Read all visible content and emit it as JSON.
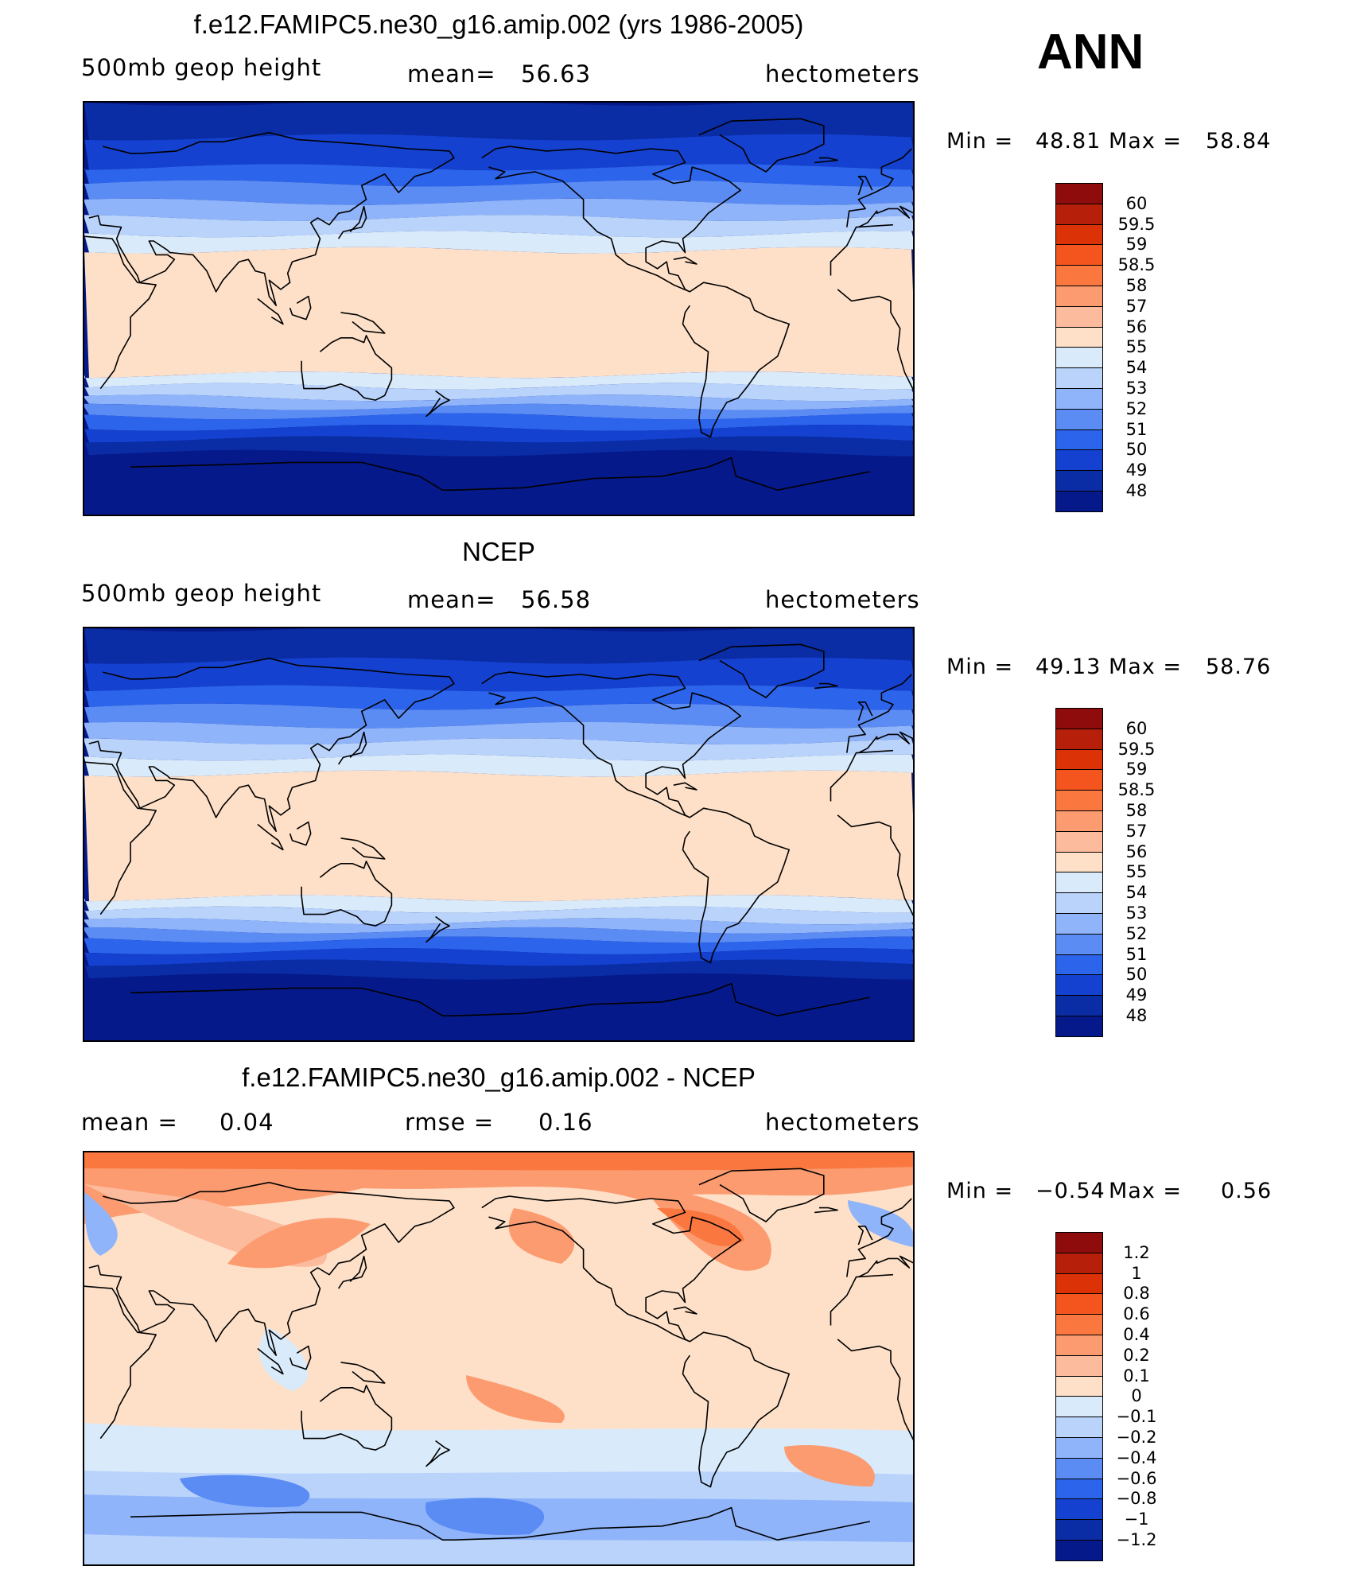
{
  "season": "ANN",
  "panels": [
    {
      "title": "f.e12.FAMIPC5.ne30_g16.amip.002 (yrs 1986-2005)",
      "left_label": "500mb  geop  height",
      "mid_prefix": "mean=",
      "mid_value": "56.63",
      "right_label": "hectometers",
      "min_label": "Min  =",
      "min_value": "48.81",
      "max_label": "Max  =",
      "max_value": "58.84",
      "colorbar": {
        "labels": [
          "60",
          "59.5",
          "59",
          "58.5",
          "58",
          "57",
          "56",
          "55",
          "54",
          "53",
          "52",
          "51",
          "50",
          "49",
          "48"
        ],
        "colors": [
          "#8e0c0c",
          "#b6200a",
          "#dc3208",
          "#f4541e",
          "#fa7840",
          "#fc9b70",
          "#fdbb9d",
          "#fee0c8",
          "#d9eafa",
          "#b9d3fb",
          "#8fb4fa",
          "#5b8cf4",
          "#2c64ec",
          "#1441cf",
          "#0a2ca4",
          "#06198a"
        ]
      },
      "field_bands": [
        {
          "lat": 90,
          "level": 1
        },
        {
          "lat": 75,
          "level": 2
        },
        {
          "lat": 62,
          "level": 3
        },
        {
          "lat": 55,
          "level": 4
        },
        {
          "lat": 47,
          "level": 5
        },
        {
          "lat": 40,
          "level": 6
        },
        {
          "lat": 33,
          "level": 7
        },
        {
          "lat": 26,
          "level": 8
        },
        {
          "lat": -28,
          "level": 7
        },
        {
          "lat": -33,
          "level": 6
        },
        {
          "lat": -38,
          "level": 5
        },
        {
          "lat": -42,
          "level": 4
        },
        {
          "lat": -46,
          "level": 3
        },
        {
          "lat": -51,
          "level": 2
        },
        {
          "lat": -56,
          "level": 1
        },
        {
          "lat": -62,
          "level": 0
        }
      ]
    },
    {
      "title": "NCEP",
      "left_label": "500mb  geop  height",
      "mid_prefix": "mean=",
      "mid_value": "56.58",
      "right_label": "hectometers",
      "min_label": "Min  =",
      "min_value": "49.13",
      "max_label": "Max  =",
      "max_value": "58.76",
      "colorbar": {
        "labels": [
          "60",
          "59.5",
          "59",
          "58.5",
          "58",
          "57",
          "56",
          "55",
          "54",
          "53",
          "52",
          "51",
          "50",
          "49",
          "48"
        ],
        "colors": [
          "#8e0c0c",
          "#b6200a",
          "#dc3208",
          "#f4541e",
          "#fa7840",
          "#fc9b70",
          "#fdbb9d",
          "#fee0c8",
          "#d9eafa",
          "#b9d3fb",
          "#8fb4fa",
          "#5b8cf4",
          "#2c64ec",
          "#1441cf",
          "#0a2ca4",
          "#06198a"
        ]
      },
      "field_bands": [
        {
          "lat": 90,
          "level": 1
        },
        {
          "lat": 76,
          "level": 2
        },
        {
          "lat": 64,
          "level": 3
        },
        {
          "lat": 56,
          "level": 4
        },
        {
          "lat": 48,
          "level": 5
        },
        {
          "lat": 41,
          "level": 6
        },
        {
          "lat": 34,
          "level": 7
        },
        {
          "lat": 27,
          "level": 8
        },
        {
          "lat": -27,
          "level": 7
        },
        {
          "lat": -32,
          "level": 6
        },
        {
          "lat": -37,
          "level": 5
        },
        {
          "lat": -41,
          "level": 4
        },
        {
          "lat": -45,
          "level": 3
        },
        {
          "lat": -50,
          "level": 2
        },
        {
          "lat": -55,
          "level": 1
        },
        {
          "lat": -61,
          "level": 0
        }
      ]
    },
    {
      "title": "f.e12.FAMIPC5.ne30_g16.amip.002 - NCEP",
      "left_label": "mean  =",
      "left_value": "0.04",
      "mid_prefix": "rmse  =",
      "mid_value": "0.16",
      "right_label": "hectometers",
      "min_label": "Min  =",
      "min_value": "−0.54",
      "max_label": "Max  =",
      "max_value": "0.56",
      "colorbar": {
        "labels": [
          "1.2",
          "1",
          "0.8",
          "0.6",
          "0.4",
          "0.2",
          "0.1",
          "0",
          "−0.1",
          "−0.2",
          "−0.4",
          "−0.6",
          "−0.8",
          "−1",
          "−1.2"
        ],
        "colors": [
          "#8e0c0c",
          "#b6200a",
          "#dc3208",
          "#f4541e",
          "#fa7840",
          "#fc9b70",
          "#fdbb9d",
          "#fee0c8",
          "#d9eafa",
          "#b9d3fb",
          "#8fb4fa",
          "#5b8cf4",
          "#2c64ec",
          "#1441cf",
          "#0a2ca4",
          "#06198a"
        ]
      }
    }
  ]
}
